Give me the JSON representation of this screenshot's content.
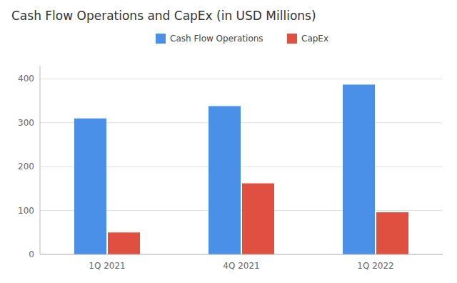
{
  "chart_data": {
    "type": "bar",
    "title": "Cash Flow Operations and CapEx (in USD Millions)",
    "categories": [
      "1Q 2021",
      "4Q 2021",
      "1Q 2022"
    ],
    "series": [
      {
        "name": "Cash Flow Operations",
        "color": "#4A90E8",
        "values": [
          310,
          338,
          387
        ]
      },
      {
        "name": "CapEx",
        "color": "#E05040",
        "values": [
          50,
          162,
          96
        ]
      }
    ],
    "ylim": [
      0,
      430
    ],
    "yticks": [
      0,
      100,
      200,
      300,
      400
    ],
    "grid": true,
    "legend": "top"
  }
}
